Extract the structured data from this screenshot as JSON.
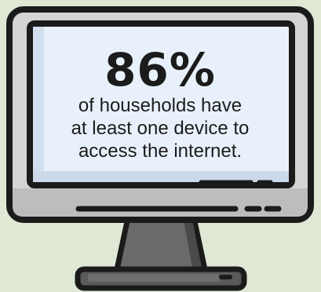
{
  "statistic": {
    "value": "86%",
    "caption_line_1": "of households have",
    "caption_line_2": "at least one device to",
    "caption_line_3": "access the internet."
  },
  "colors": {
    "background": "#dfe8d5",
    "monitor_frame": "#d4d4d4",
    "screen": "#e8f1fb",
    "outline": "#1b1b1b",
    "stand": "#6a6a6a"
  },
  "icon": "desktop-monitor-icon"
}
